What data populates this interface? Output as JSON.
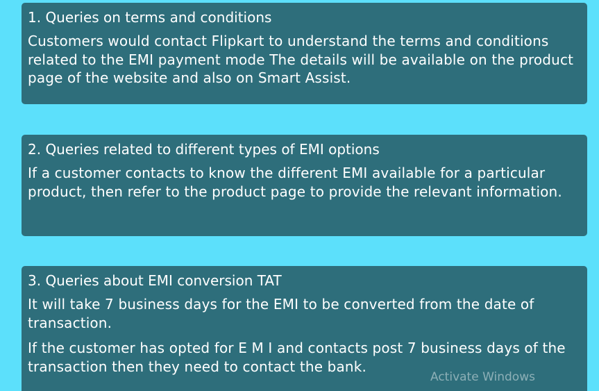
{
  "cards": [
    {
      "title": "1. Queries on terms and conditions",
      "paragraphs": [
        "Customers would contact Flipkart to understand the terms and conditions related to the EMI payment mode The details will be available on the product page of the website and also on Smart Assist."
      ]
    },
    {
      "title": "2. Queries related to different types of EMI options",
      "paragraphs": [
        "If a customer contacts to know the different EMI available for a particular product, then refer to the product page to provide the relevant information."
      ]
    },
    {
      "title": "3. Queries about EMI conversion TAT",
      "paragraphs": [
        "It will take 7 business days for the EMI to be converted from the date of transaction.",
        "If the customer has opted for E M I and contacts post 7 business days of the transaction then they need to contact the bank."
      ]
    }
  ],
  "watermark": "Activate Windows",
  "colors": {
    "background": "#5ce0fb",
    "card": "#2e6e7b",
    "text": "#ffffff"
  }
}
